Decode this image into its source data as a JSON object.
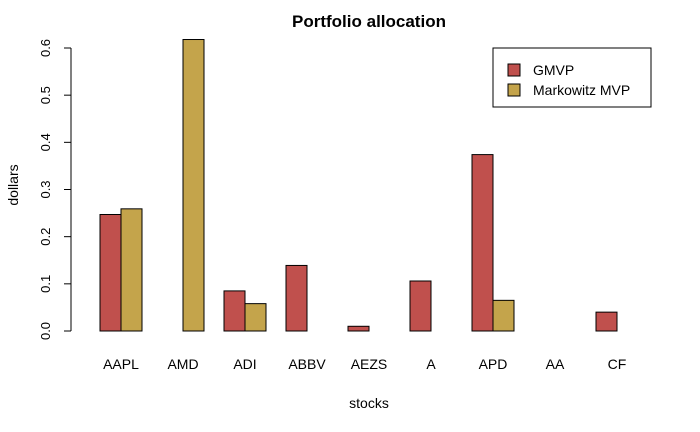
{
  "chart_data": {
    "type": "bar",
    "title": "Portfolio allocation",
    "xlabel": "stocks",
    "ylabel": "dollars",
    "categories": [
      "AAPL",
      "AMD",
      "ADI",
      "ABBV",
      "AEZS",
      "A",
      "APD",
      "AA",
      "CF"
    ],
    "series": [
      {
        "name": "GMVP",
        "color": "#c0504d",
        "values": [
          0.247,
          0.0,
          0.085,
          0.139,
          0.01,
          0.106,
          0.374,
          0.0,
          0.04
        ]
      },
      {
        "name": "Markowitz MVP",
        "color": "#c4a44b",
        "values": [
          0.259,
          0.618,
          0.058,
          0.0,
          0.0,
          0.0,
          0.065,
          0.0,
          0.0
        ]
      }
    ],
    "ylim": [
      0,
      0.6
    ],
    "yticks": [
      0.0,
      0.1,
      0.2,
      0.3,
      0.4,
      0.5,
      0.6
    ],
    "ytick_labels": [
      "0.0",
      "0.1",
      "0.2",
      "0.3",
      "0.4",
      "0.5",
      "0.6"
    ],
    "grid": false,
    "legend_position": "top-right"
  }
}
